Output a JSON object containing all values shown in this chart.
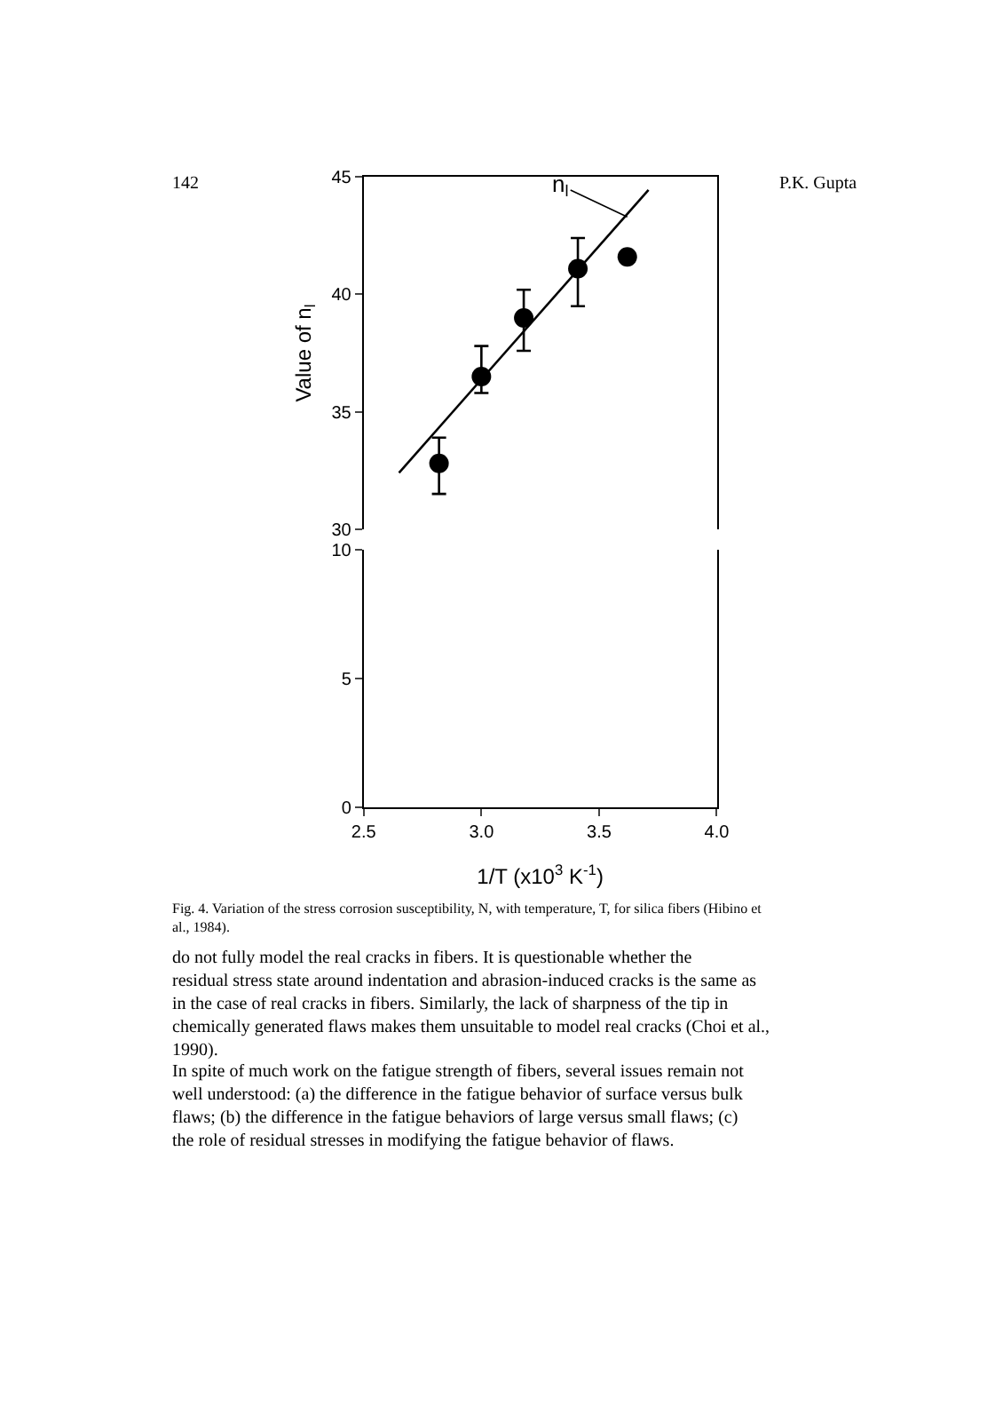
{
  "chart_data": [
    {
      "type": "scatter",
      "ylabel": "Value of n$_{l}$",
      "xlim": [
        2.5,
        4.0
      ],
      "ylim": [
        30,
        45
      ],
      "yticks": [
        30,
        35,
        40,
        45
      ],
      "tick_labels": "y",
      "marker": "circle",
      "annotations": [
        "142",
        "P.K. Gupta",
        {
          "text": "n$_{l}$",
          "x": 3.62,
          "y": 43.3
        }
      ],
      "series": [
        {
          "color": "#000000",
          "x": [
            2.82,
            3.0,
            3.18,
            3.41,
            3.62
          ],
          "values": [
            32.8,
            36.5,
            39.0,
            41.1,
            41.6
          ],
          "errors": [
            [
              31.5,
              33.9
            ],
            [
              35.8,
              37.8
            ],
            [
              37.6,
              40.2
            ],
            [
              39.5,
              42.4
            ],
            null
          ]
        },
        {
          "type": "line",
          "color": "#000000",
          "marker": "none",
          "line_style": "solid",
          "x": [
            2.65,
            3.71
          ],
          "values": [
            32.4,
            44.45
          ]
        }
      ]
    },
    {
      "type": "scatter",
      "xlabel": "1/T (x10$^{3}$ K$^{-1}$)",
      "xlim": [
        2.5,
        4.0
      ],
      "xticks": [
        {
          "value": 2.5,
          "label": "2.5"
        },
        {
          "value": 3.0,
          "label": "3.0"
        },
        {
          "value": 3.5,
          "label": "3.5"
        },
        {
          "value": 4.0,
          "label": "4.0"
        }
      ],
      "ylim": [
        0,
        10
      ],
      "yticks": [
        0,
        5,
        10
      ],
      "annotations": [
        "Fig. 4. Variation of the stress corrosion susceptibility, N, with temperature, T, for silica fibers (Hibino et al., 1984).",
        "do not fully model the real cracks in fibers. It is questionable whether the residual stress state around indentation and abrasion-induced cracks is the same as in the case of real cracks in fibers. Similarly, the lack of sharpness of the tip in chemically generated flaws makes them unsuitable to model real cracks (Choi et al., 1990).",
        "In spite of much work on the fatigue strength of fibers, several issues remain not well understood: (a) the difference in the fatigue behavior of surface versus bulk flaws; (b) the difference in the fatigue behaviors of large versus small flaws; (c) the role of residual stresses in modifying the fatigue behavior of flaws."
      ]
    }
  ]
}
